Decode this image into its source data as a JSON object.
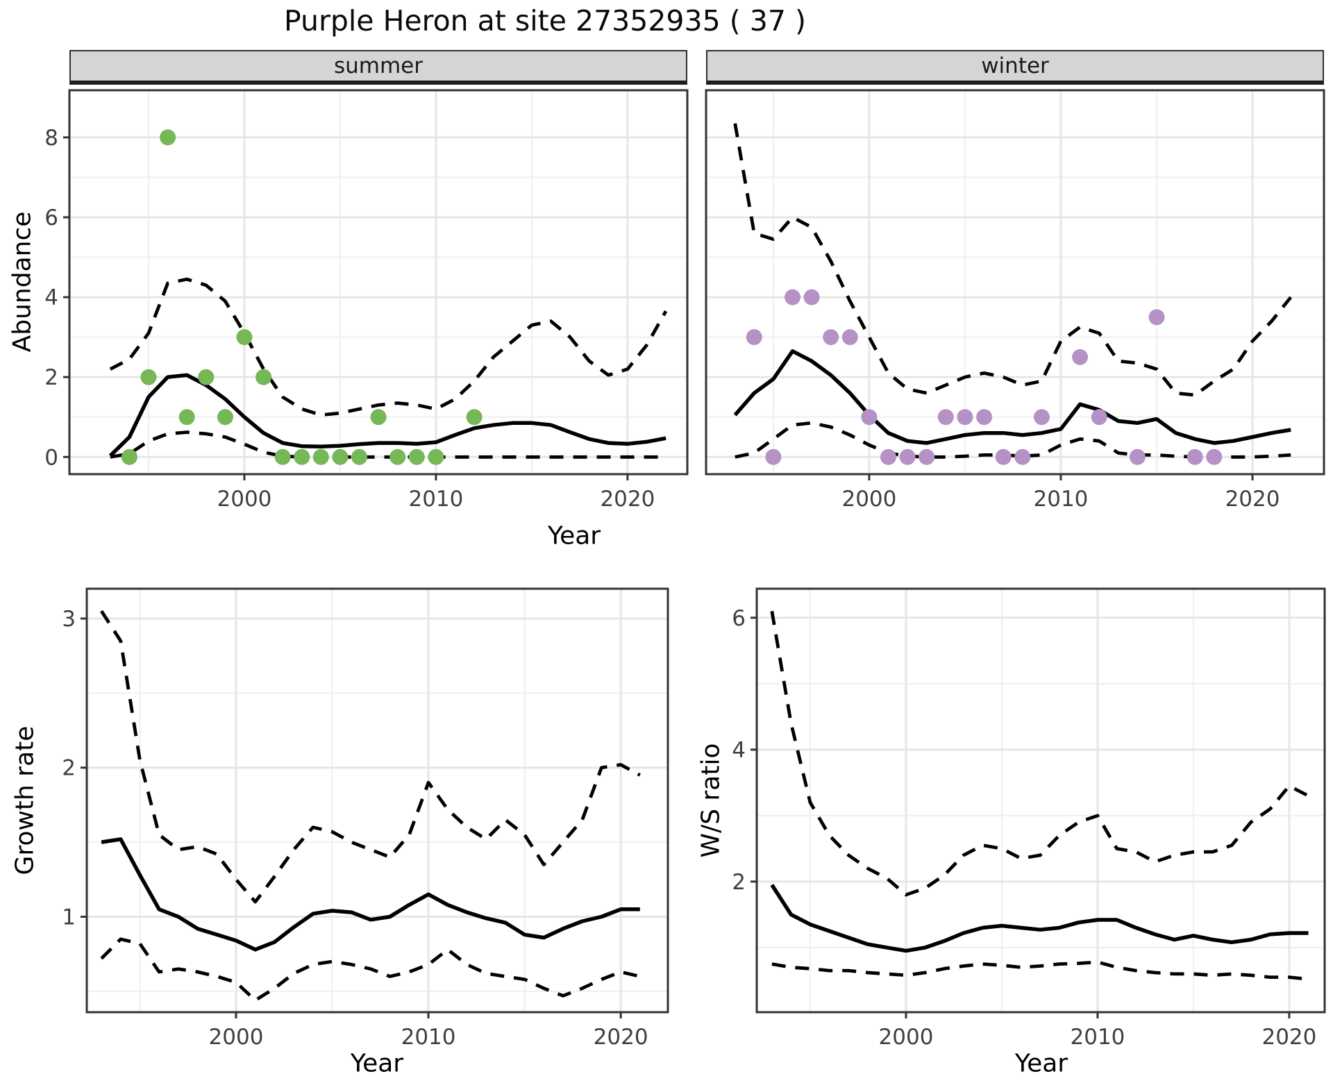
{
  "title": "Purple Heron at site 27352935 ( 37 )",
  "facets": {
    "summer": "summer",
    "winter": "winter"
  },
  "axis_titles": {
    "abundance": "Abundance",
    "year": "Year",
    "growth_rate": "Growth rate",
    "ws_ratio": "W/S ratio"
  },
  "colors": {
    "summer_point": "#76b756",
    "winter_point": "#b592c6",
    "line": "#000000",
    "grid_major": "#e6e6e6",
    "grid_minor": "#f0f0f0",
    "strip_bg": "#d5d5d5",
    "panel_border": "#333333",
    "tick_label": "#3f3f3f"
  },
  "chart_data": [
    {
      "id": "abundance_summer",
      "type": "scatter",
      "facet_label": "summer",
      "xlabel": "Year",
      "ylabel": "Abundance",
      "xlim": [
        1990.87,
        2023.12
      ],
      "ylim": [
        -0.43,
        9.18
      ],
      "xticks": [
        2000,
        2010,
        2020
      ],
      "xticks_minor": [
        1995,
        2005,
        2015
      ],
      "yticks": [
        0,
        2,
        4,
        6,
        8
      ],
      "yticks_minor": [
        1,
        3,
        5,
        7
      ],
      "point_color": "#76b756",
      "points": [
        [
          1994,
          0
        ],
        [
          1995,
          2
        ],
        [
          1996,
          8
        ],
        [
          1997,
          1
        ],
        [
          1998,
          2
        ],
        [
          1999,
          1
        ],
        [
          2000,
          3
        ],
        [
          2001,
          2
        ],
        [
          2002,
          0
        ],
        [
          2003,
          0
        ],
        [
          2004,
          0
        ],
        [
          2005,
          0
        ],
        [
          2006,
          0
        ],
        [
          2007,
          1
        ],
        [
          2008,
          0
        ],
        [
          2009,
          0
        ],
        [
          2010,
          0
        ],
        [
          2012,
          1
        ]
      ],
      "series": [
        {
          "name": "lower_ci",
          "style": "dashed",
          "year_start": 1993,
          "values": [
            0.0,
            0.08,
            0.4,
            0.58,
            0.62,
            0.58,
            0.5,
            0.32,
            0.12,
            0.02,
            0,
            0,
            0,
            0,
            0,
            0,
            0,
            0,
            0,
            0,
            0,
            0,
            0,
            0,
            0,
            0,
            0,
            0,
            0,
            0
          ]
        },
        {
          "name": "upper_ci",
          "style": "dashed",
          "year_start": 1993,
          "values": [
            2.2,
            2.45,
            3.1,
            4.35,
            4.45,
            4.3,
            3.9,
            3.1,
            2.2,
            1.5,
            1.2,
            1.05,
            1.1,
            1.2,
            1.3,
            1.35,
            1.3,
            1.2,
            1.45,
            1.9,
            2.5,
            2.9,
            3.3,
            3.4,
            3.0,
            2.4,
            2.05,
            2.2,
            2.8,
            3.65
          ]
        },
        {
          "name": "fit",
          "style": "solid",
          "year_start": 1993,
          "values": [
            0.03,
            0.5,
            1.5,
            2.0,
            2.05,
            1.8,
            1.45,
            1.0,
            0.6,
            0.35,
            0.27,
            0.26,
            0.28,
            0.32,
            0.35,
            0.35,
            0.33,
            0.37,
            0.55,
            0.72,
            0.8,
            0.85,
            0.85,
            0.8,
            0.62,
            0.45,
            0.35,
            0.33,
            0.38,
            0.47
          ]
        }
      ]
    },
    {
      "id": "abundance_winter",
      "type": "scatter",
      "facet_label": "winter",
      "xlabel": "Year",
      "ylabel": "Abundance",
      "xlim": [
        1991.49,
        2023.73
      ],
      "ylim": [
        -0.43,
        9.18
      ],
      "xticks": [
        2000,
        2010,
        2020
      ],
      "xticks_minor": [
        1995,
        2005,
        2015
      ],
      "yticks": [
        0,
        2,
        4,
        6,
        8
      ],
      "yticks_minor": [
        1,
        3,
        5,
        7
      ],
      "point_color": "#b592c6",
      "points": [
        [
          1994,
          3
        ],
        [
          1995,
          0
        ],
        [
          1996,
          4
        ],
        [
          1997,
          4
        ],
        [
          1998,
          3
        ],
        [
          1999,
          3
        ],
        [
          2000,
          1
        ],
        [
          2001,
          0
        ],
        [
          2002,
          0
        ],
        [
          2003,
          0
        ],
        [
          2004,
          1
        ],
        [
          2005,
          1
        ],
        [
          2006,
          1
        ],
        [
          2007,
          0
        ],
        [
          2008,
          0
        ],
        [
          2009,
          1
        ],
        [
          2011,
          2.5
        ],
        [
          2012,
          1
        ],
        [
          2014,
          0
        ],
        [
          2015,
          3.5
        ],
        [
          2017,
          0
        ],
        [
          2018,
          0
        ]
      ],
      "series": [
        {
          "name": "lower_ci",
          "style": "dashed",
          "year_start": 1993,
          "values": [
            0,
            0.1,
            0.45,
            0.8,
            0.85,
            0.75,
            0.55,
            0.3,
            0.1,
            0.02,
            0,
            0,
            0.02,
            0.05,
            0.05,
            0.02,
            0.05,
            0.3,
            0.45,
            0.4,
            0.1,
            0.05,
            0.05,
            0.02,
            0,
            0,
            0,
            0,
            0.02,
            0.05
          ]
        },
        {
          "name": "upper_ci",
          "style": "dashed",
          "year_start": 1993,
          "values": [
            8.35,
            5.6,
            5.45,
            6.0,
            5.75,
            4.9,
            3.9,
            3.0,
            2.1,
            1.7,
            1.6,
            1.8,
            2.0,
            2.1,
            2.0,
            1.8,
            1.9,
            2.9,
            3.25,
            3.1,
            2.4,
            2.35,
            2.2,
            1.6,
            1.55,
            1.9,
            2.2,
            2.9,
            3.4,
            4.0
          ]
        },
        {
          "name": "fit",
          "style": "solid",
          "year_start": 1993,
          "values": [
            1.05,
            1.6,
            1.95,
            2.65,
            2.4,
            2.05,
            1.6,
            1.05,
            0.6,
            0.4,
            0.35,
            0.45,
            0.55,
            0.6,
            0.6,
            0.55,
            0.6,
            0.7,
            1.32,
            1.18,
            0.9,
            0.85,
            0.95,
            0.6,
            0.45,
            0.35,
            0.4,
            0.5,
            0.6,
            0.68
          ]
        }
      ]
    },
    {
      "id": "growth_rate",
      "type": "line",
      "xlabel": "Year",
      "ylabel": "Growth rate",
      "xlim": [
        1992.24,
        2022.45
      ],
      "ylim": [
        0.36,
        3.2
      ],
      "xticks": [
        2000,
        2010,
        2020
      ],
      "xticks_minor": [
        1995,
        2005,
        2015
      ],
      "yticks": [
        1,
        2,
        3
      ],
      "yticks_minor": [
        0.5,
        1.5,
        2.5
      ],
      "series": [
        {
          "name": "lower_ci",
          "style": "dashed",
          "year_start": 1993,
          "values": [
            0.72,
            0.85,
            0.82,
            0.63,
            0.65,
            0.63,
            0.6,
            0.56,
            0.44,
            0.52,
            0.62,
            0.68,
            0.7,
            0.68,
            0.65,
            0.6,
            0.63,
            0.68,
            0.78,
            0.68,
            0.62,
            0.6,
            0.58,
            0.52,
            0.47,
            0.52,
            0.58,
            0.63,
            0.6
          ]
        },
        {
          "name": "upper_ci",
          "style": "dashed",
          "year_start": 1993,
          "values": [
            3.05,
            2.85,
            2.05,
            1.55,
            1.45,
            1.47,
            1.42,
            1.25,
            1.1,
            1.27,
            1.45,
            1.6,
            1.57,
            1.5,
            1.45,
            1.4,
            1.55,
            1.9,
            1.72,
            1.6,
            1.52,
            1.65,
            1.55,
            1.35,
            1.5,
            1.65,
            2.0,
            2.02,
            1.95
          ]
        },
        {
          "name": "fit",
          "style": "solid",
          "year_start": 1993,
          "values": [
            1.5,
            1.52,
            1.28,
            1.05,
            1.0,
            0.92,
            0.88,
            0.84,
            0.78,
            0.83,
            0.93,
            1.02,
            1.04,
            1.03,
            0.98,
            1.0,
            1.08,
            1.15,
            1.08,
            1.03,
            0.99,
            0.96,
            0.88,
            0.86,
            0.92,
            0.97,
            1.0,
            1.05,
            1.05
          ]
        }
      ]
    },
    {
      "id": "ws_ratio",
      "type": "line",
      "xlabel": "Year",
      "ylabel": "W/S ratio",
      "xlim": [
        1992.21,
        2021.85
      ],
      "ylim": [
        0.02,
        6.44
      ],
      "xticks": [
        2000,
        2010,
        2020
      ],
      "xticks_minor": [
        1995,
        2005,
        2015
      ],
      "yticks": [
        2,
        4,
        6
      ],
      "yticks_minor": [
        1,
        3,
        5
      ],
      "series": [
        {
          "name": "lower_ci",
          "style": "dashed",
          "year_start": 1993,
          "values": [
            0.75,
            0.7,
            0.68,
            0.65,
            0.65,
            0.62,
            0.6,
            0.58,
            0.62,
            0.68,
            0.72,
            0.75,
            0.73,
            0.7,
            0.72,
            0.75,
            0.76,
            0.78,
            0.7,
            0.65,
            0.62,
            0.6,
            0.6,
            0.58,
            0.6,
            0.58,
            0.55,
            0.55,
            0.52
          ]
        },
        {
          "name": "upper_ci",
          "style": "dashed",
          "year_start": 1993,
          "values": [
            6.1,
            4.4,
            3.2,
            2.7,
            2.4,
            2.2,
            2.05,
            1.8,
            1.9,
            2.1,
            2.4,
            2.55,
            2.5,
            2.35,
            2.4,
            2.7,
            2.9,
            3.0,
            2.5,
            2.45,
            2.3,
            2.4,
            2.45,
            2.45,
            2.55,
            2.9,
            3.1,
            3.45,
            3.3
          ]
        },
        {
          "name": "fit",
          "style": "solid",
          "year_start": 1993,
          "values": [
            1.95,
            1.5,
            1.35,
            1.25,
            1.15,
            1.05,
            1.0,
            0.95,
            1.0,
            1.1,
            1.22,
            1.3,
            1.33,
            1.3,
            1.27,
            1.3,
            1.38,
            1.42,
            1.42,
            1.3,
            1.2,
            1.12,
            1.18,
            1.12,
            1.08,
            1.12,
            1.2,
            1.22,
            1.22
          ]
        }
      ]
    }
  ]
}
